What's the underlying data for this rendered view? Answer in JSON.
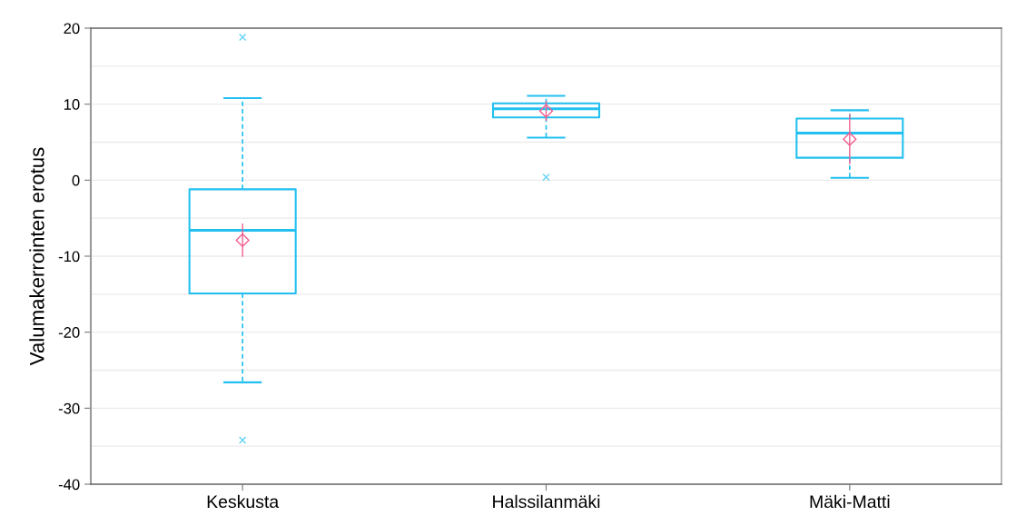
{
  "chart_data": {
    "type": "box",
    "ylabel": "Valumakerrointen erotus",
    "categories": [
      "Keskusta",
      "Halssilanmäki",
      "Mäki-Matti"
    ],
    "ylim": [
      -40,
      20
    ],
    "yticks": [
      -40,
      {
        "value": -35,
        "label": null
      },
      -30,
      {
        "value": -25,
        "label": null
      },
      -20,
      {
        "value": -15,
        "label": null
      },
      -10,
      {
        "value": -5,
        "label": null
      },
      0,
      {
        "value": 5,
        "label": null
      },
      10,
      {
        "value": 15,
        "label": null
      },
      20
    ],
    "grid": "y",
    "series": [
      {
        "color": "#22c0f0",
        "boxes": [
          {
            "low": -26.6,
            "q1": -14.9,
            "median": -6.6,
            "q3": -1.2,
            "high": 10.8,
            "outliers": [
              18.8,
              -34.2
            ]
          },
          {
            "low": 5.6,
            "q1": 8.25,
            "median": 9.4,
            "q3": 10.1,
            "high": 11.1,
            "outliers": [
              0.4
            ]
          },
          {
            "low": 0.3,
            "q1": 2.95,
            "median": 6.2,
            "q3": 8.1,
            "high": 9.2
          }
        ]
      },
      {
        "type": "scatter",
        "marker": "diamond",
        "color": "#f0608f",
        "x": [
          "Keskusta",
          "Halssilanmäki",
          "Mäki-Matti"
        ],
        "values": [
          -7.9,
          9.1,
          5.4
        ],
        "errors": [
          2.2,
          1.3,
          3.3
        ]
      }
    ]
  }
}
